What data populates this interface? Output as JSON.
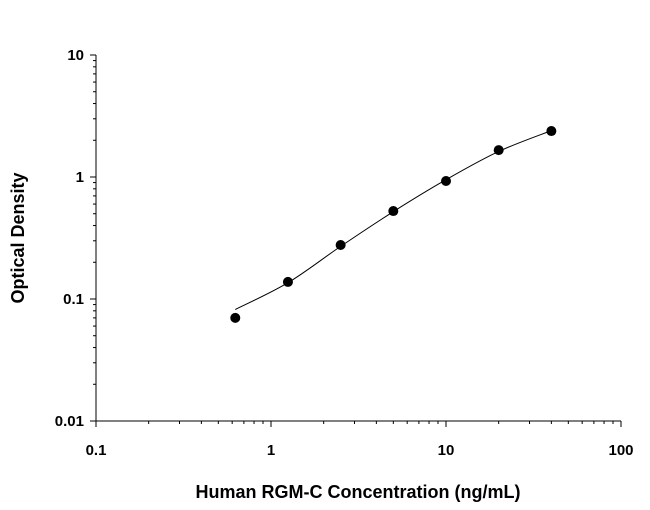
{
  "chart_data": {
    "type": "scatter",
    "title": "",
    "xlabel": "Human RGM-C Concentration (ng/mL)",
    "ylabel": "Optical Density",
    "x_scale": "log",
    "y_scale": "log",
    "xlim": [
      0.1,
      100
    ],
    "ylim": [
      0.01,
      10
    ],
    "x_ticks": [
      "0.1",
      "1",
      "10",
      "100"
    ],
    "y_ticks": [
      "0.01",
      "0.1",
      "1",
      "10"
    ],
    "grid": false,
    "marker_color": "#000000",
    "line_color": "#000000",
    "series": [
      {
        "x": [
          0.625,
          1.25,
          2.5,
          5,
          10,
          20,
          40
        ],
        "y": [
          0.07,
          0.138,
          0.277,
          0.526,
          0.927,
          1.66,
          2.38
        ],
        "fit_y": [
          0.082,
          0.136,
          0.27,
          0.52,
          0.95,
          1.62,
          2.4
        ]
      }
    ]
  }
}
